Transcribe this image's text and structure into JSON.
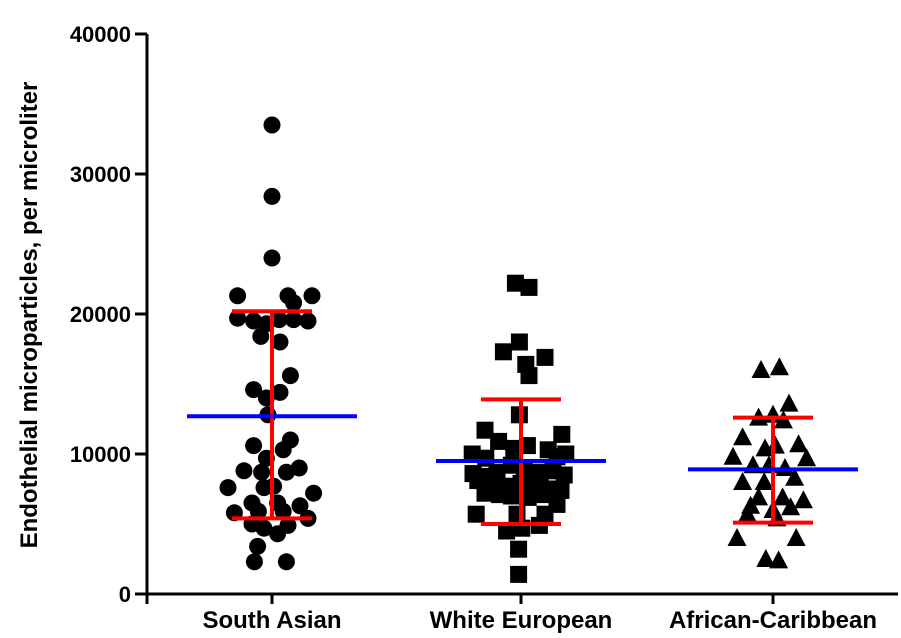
{
  "chart_data": {
    "type": "scatter",
    "ylabel": "Endothelial microparticles, per microliter",
    "ylim": [
      0,
      40000
    ],
    "yticks": [
      0,
      10000,
      20000,
      30000,
      40000
    ],
    "ytick_labels": [
      "0",
      "10000",
      "20000",
      "30000",
      "40000"
    ],
    "categories": [
      "South Asian",
      "White European",
      "African-Caribbean"
    ],
    "grid": false,
    "legend": "none",
    "series": [
      {
        "marker": "circle",
        "points": [
          [
            -0.0,
            33500
          ],
          [
            -0.0,
            28400
          ],
          [
            -0.0,
            24000
          ],
          [
            -0.43,
            21300
          ],
          [
            0.2,
            21300
          ],
          [
            0.27,
            20800
          ],
          [
            0.5,
            21300
          ],
          [
            -0.43,
            19700
          ],
          [
            -0.23,
            19500
          ],
          [
            -0.07,
            19300
          ],
          [
            0.09,
            19600
          ],
          [
            0.27,
            19600
          ],
          [
            0.45,
            19500
          ],
          [
            -0.14,
            18400
          ],
          [
            0.1,
            18000
          ],
          [
            0.23,
            15600
          ],
          [
            -0.23,
            14600
          ],
          [
            0.1,
            14400
          ],
          [
            -0.07,
            14000
          ],
          [
            -0.05,
            12800
          ],
          [
            0.23,
            11000
          ],
          [
            -0.23,
            10600
          ],
          [
            0.14,
            10300
          ],
          [
            -0.07,
            9700
          ],
          [
            0.34,
            9000
          ],
          [
            -0.35,
            8800
          ],
          [
            -0.13,
            8700
          ],
          [
            0.18,
            8700
          ],
          [
            -0.55,
            7600
          ],
          [
            -0.1,
            7600
          ],
          [
            0.02,
            7700
          ],
          [
            0.52,
            7200
          ],
          [
            -0.25,
            6500
          ],
          [
            0.07,
            6500
          ],
          [
            0.35,
            6300
          ],
          [
            -0.47,
            5800
          ],
          [
            -0.17,
            5900
          ],
          [
            0.14,
            5900
          ],
          [
            0.45,
            5400
          ],
          [
            -0.25,
            5000
          ],
          [
            -0.1,
            4700
          ],
          [
            0.2,
            4900
          ],
          [
            -0.18,
            3400
          ],
          [
            0.07,
            4300
          ],
          [
            -0.22,
            2300
          ],
          [
            0.18,
            2300
          ]
        ]
      },
      {
        "marker": "square",
        "points": [
          [
            -0.07,
            22200
          ],
          [
            0.1,
            21900
          ],
          [
            -0.02,
            18000
          ],
          [
            -0.22,
            17300
          ],
          [
            0.06,
            16400
          ],
          [
            0.3,
            16900
          ],
          [
            0.1,
            15600
          ],
          [
            -0.02,
            12800
          ],
          [
            -0.45,
            11700
          ],
          [
            0.51,
            11400
          ],
          [
            -0.28,
            10900
          ],
          [
            -0.09,
            10400
          ],
          [
            0.08,
            10600
          ],
          [
            0.34,
            10300
          ],
          [
            -0.61,
            10000
          ],
          [
            -0.44,
            9700
          ],
          [
            0.56,
            10000
          ],
          [
            0.45,
            9800
          ],
          [
            -0.6,
            8600
          ],
          [
            -0.42,
            8400
          ],
          [
            -0.3,
            8700
          ],
          [
            -0.12,
            9200
          ],
          [
            0.04,
            8800
          ],
          [
            0.24,
            8700
          ],
          [
            0.4,
            8800
          ],
          [
            0.54,
            8500
          ],
          [
            -0.54,
            8100
          ],
          [
            -0.35,
            8000
          ],
          [
            -0.2,
            7700
          ],
          [
            0.0,
            7900
          ],
          [
            0.17,
            7600
          ],
          [
            0.34,
            7500
          ],
          [
            0.5,
            7400
          ],
          [
            -0.45,
            7200
          ],
          [
            -0.27,
            7100
          ],
          [
            -0.12,
            7000
          ],
          [
            0.09,
            6900
          ],
          [
            0.3,
            7100
          ],
          [
            0.45,
            6400
          ],
          [
            -0.56,
            5700
          ],
          [
            -0.05,
            5700
          ],
          [
            0.3,
            5700
          ],
          [
            -0.18,
            4500
          ],
          [
            0.01,
            4700
          ],
          [
            0.23,
            4900
          ],
          [
            -0.03,
            3200
          ],
          [
            -0.03,
            1400
          ]
        ]
      },
      {
        "marker": "triangle",
        "points": [
          [
            0.08,
            16200
          ],
          [
            -0.15,
            16000
          ],
          [
            0.2,
            13600
          ],
          [
            0.0,
            12800
          ],
          [
            -0.18,
            12600
          ],
          [
            0.13,
            12400
          ],
          [
            -0.38,
            11200
          ],
          [
            -0.1,
            10400
          ],
          [
            0.03,
            10600
          ],
          [
            0.32,
            10700
          ],
          [
            -0.5,
            9800
          ],
          [
            -0.25,
            9200
          ],
          [
            -0.05,
            9200
          ],
          [
            0.15,
            9000
          ],
          [
            0.42,
            9700
          ],
          [
            -0.38,
            8000
          ],
          [
            0.27,
            8300
          ],
          [
            -0.11,
            8000
          ],
          [
            -0.18,
            6900
          ],
          [
            0.12,
            6900
          ],
          [
            0.38,
            6700
          ],
          [
            -0.28,
            6300
          ],
          [
            0.0,
            6000
          ],
          [
            0.22,
            6200
          ],
          [
            -0.32,
            5700
          ],
          [
            0.05,
            5400
          ],
          [
            -0.45,
            4000
          ],
          [
            0.29,
            4000
          ],
          [
            -0.09,
            2500
          ],
          [
            0.07,
            2400
          ]
        ]
      }
    ],
    "means": [
      12700,
      9500,
      8900
    ],
    "sd_bars": [
      [
        5400,
        20200
      ],
      [
        5000,
        13900
      ],
      [
        5100,
        12600
      ]
    ],
    "colors": {
      "points": "#000000",
      "mean": "#0000ff",
      "sd": "#ff0000"
    }
  }
}
